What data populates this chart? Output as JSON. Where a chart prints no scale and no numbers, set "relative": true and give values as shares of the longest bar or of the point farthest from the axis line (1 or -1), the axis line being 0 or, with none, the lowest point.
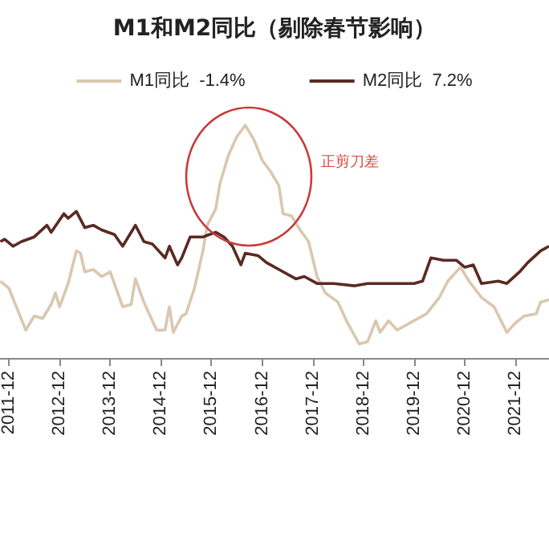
{
  "chart_data": {
    "type": "line",
    "title": "M1和M2同比（剔除春节影响）",
    "relative": true,
    "legend": "top",
    "grid": false,
    "marker": "none",
    "annotations": [
      "正剪刀差"
    ],
    "xlim": [
      "2011-10",
      "2022-08"
    ],
    "xticks": [
      "2011-12",
      "2012-12",
      "2013-12",
      "2014-12",
      "2015-12",
      "2016-12",
      "2017-12",
      "2018-12",
      "2019-12",
      "2020-12",
      "2021-12"
    ],
    "series": [
      {
        "name": "M1同比  -1.4%",
        "color": "#d9c8b0",
        "x": [
          "2011-10",
          "2011-12",
          "2012-04",
          "2012-06",
          "2012-08",
          "2012-10",
          "2012-11",
          "2012-12",
          "2013-02",
          "2013-04",
          "2013-05",
          "2013-06",
          "2013-08",
          "2013-10",
          "2013-12",
          "2014-03",
          "2014-05",
          "2014-06",
          "2014-08",
          "2014-11",
          "2015-01",
          "2015-02",
          "2015-03",
          "2015-05",
          "2015-06",
          "2015-08",
          "2015-10",
          "2015-11",
          "2016-01",
          "2016-02",
          "2016-04",
          "2016-06",
          "2016-08",
          "2016-10",
          "2016-12",
          "2017-02",
          "2017-04",
          "2017-05",
          "2017-07",
          "2017-09",
          "2017-11",
          "2018-01",
          "2018-03",
          "2018-06",
          "2018-08",
          "2018-11",
          "2019-01",
          "2019-03",
          "2019-04",
          "2019-06",
          "2019-08",
          "2019-10",
          "2020-01",
          "2020-03",
          "2020-06",
          "2020-08",
          "2020-11",
          "2021-01",
          "2021-04",
          "2021-07",
          "2021-10",
          "2021-12",
          "2022-02",
          "2022-05",
          "2022-06",
          "2022-08"
        ],
        "values": [
          0.33,
          0.3,
          0.12,
          0.18,
          0.17,
          0.23,
          0.28,
          0.22,
          0.32,
          0.46,
          0.45,
          0.37,
          0.38,
          0.35,
          0.37,
          0.22,
          0.23,
          0.34,
          0.24,
          0.12,
          0.12,
          0.22,
          0.11,
          0.18,
          0.19,
          0.3,
          0.46,
          0.57,
          0.64,
          0.75,
          0.87,
          0.95,
          1.0,
          0.94,
          0.85,
          0.8,
          0.74,
          0.62,
          0.61,
          0.55,
          0.5,
          0.35,
          0.28,
          0.24,
          0.16,
          0.06,
          0.07,
          0.16,
          0.11,
          0.16,
          0.12,
          0.14,
          0.17,
          0.19,
          0.26,
          0.33,
          0.39,
          0.33,
          0.26,
          0.22,
          0.11,
          0.15,
          0.18,
          0.19,
          0.24,
          0.25
        ]
      },
      {
        "name": "M2同比  7.2%",
        "color": "#5a2a22",
        "x": [
          "2011-10",
          "2011-11",
          "2012-01",
          "2012-03",
          "2012-06",
          "2012-09",
          "2012-10",
          "2013-01",
          "2013-02",
          "2013-04",
          "2013-06",
          "2013-08",
          "2013-10",
          "2014-01",
          "2014-03",
          "2014-06",
          "2014-08",
          "2014-10",
          "2015-01",
          "2015-02",
          "2015-04",
          "2015-05",
          "2015-07",
          "2015-10",
          "2016-01",
          "2016-03",
          "2016-05",
          "2016-07",
          "2016-08",
          "2016-11",
          "2017-01",
          "2017-04",
          "2017-08",
          "2017-10",
          "2018-01",
          "2018-05",
          "2018-10",
          "2019-01",
          "2019-05",
          "2019-08",
          "2019-12",
          "2020-02",
          "2020-04",
          "2020-07",
          "2020-10",
          "2020-12",
          "2021-02",
          "2021-04",
          "2021-08",
          "2021-10",
          "2022-01",
          "2022-03",
          "2022-06",
          "2022-08"
        ],
        "values": [
          0.5,
          0.51,
          0.48,
          0.5,
          0.52,
          0.57,
          0.54,
          0.62,
          0.6,
          0.63,
          0.56,
          0.57,
          0.55,
          0.53,
          0.48,
          0.57,
          0.5,
          0.49,
          0.43,
          0.48,
          0.4,
          0.43,
          0.52,
          0.52,
          0.54,
          0.52,
          0.48,
          0.4,
          0.45,
          0.44,
          0.41,
          0.38,
          0.34,
          0.35,
          0.32,
          0.32,
          0.31,
          0.32,
          0.32,
          0.32,
          0.32,
          0.33,
          0.43,
          0.42,
          0.42,
          0.39,
          0.4,
          0.32,
          0.33,
          0.32,
          0.37,
          0.41,
          0.46,
          0.48
        ]
      }
    ]
  }
}
